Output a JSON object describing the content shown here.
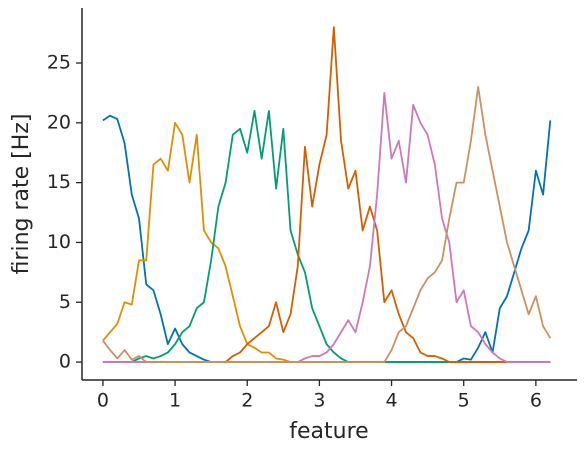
{
  "chart_data": {
    "type": "line",
    "xlabel": "feature",
    "ylabel": "firing rate [Hz]",
    "x": [
      0,
      0.1,
      0.2,
      0.3,
      0.4,
      0.5,
      0.6,
      0.7,
      0.8,
      0.9,
      1,
      1.1,
      1.2,
      1.3,
      1.4,
      1.5,
      1.6,
      1.7,
      1.8,
      1.9,
      2,
      2.1,
      2.2,
      2.3,
      2.4,
      2.5,
      2.6,
      2.7,
      2.8,
      2.9,
      3,
      3.1,
      3.2,
      3.3,
      3.4,
      3.5,
      3.6,
      3.7,
      3.8,
      3.9,
      4,
      4.1,
      4.2,
      4.3,
      4.4,
      4.5,
      4.6,
      4.7,
      4.8,
      4.9,
      5,
      5.1,
      5.2,
      5.3,
      5.4,
      5.5,
      5.6,
      5.7,
      5.8,
      5.9,
      6,
      6.1,
      6.2
    ],
    "series": [
      {
        "color": "#0173b2",
        "values": [
          20.2,
          20.6,
          20.3,
          18.3,
          14,
          12,
          6.5,
          6,
          4,
          1.5,
          2.8,
          1.5,
          0.8,
          0.5,
          0.2,
          0,
          0,
          0,
          0,
          0,
          0,
          0,
          0,
          0,
          0,
          0,
          0,
          0,
          0,
          0,
          0,
          0,
          0,
          0,
          0,
          0,
          0,
          0,
          0,
          0,
          0,
          0,
          0,
          0,
          0,
          0,
          0,
          0,
          0,
          0,
          0.3,
          0.2,
          1.2,
          2.5,
          0.8,
          4.5,
          5.5,
          7.5,
          9.5,
          11,
          16,
          14,
          20.2
        ]
      },
      {
        "color": "#de8f05",
        "values": [
          1.8,
          2.5,
          3.2,
          5,
          4.8,
          8.5,
          8.5,
          16.5,
          17,
          16,
          20,
          19,
          15,
          19,
          11,
          10,
          9.5,
          8,
          5.5,
          3,
          1.5,
          1.2,
          0.8,
          0.8,
          0.3,
          0.2,
          0,
          0,
          0,
          0,
          0,
          0,
          0,
          0,
          0,
          0,
          0,
          0,
          0,
          0,
          0,
          0,
          0,
          0,
          0,
          0,
          0,
          0,
          0,
          0,
          0,
          0,
          0,
          0,
          0,
          0,
          0,
          0,
          0,
          0,
          0,
          0,
          0
        ]
      },
      {
        "color": "#029e73",
        "values": [
          0,
          0,
          0,
          0,
          0,
          0.3,
          0.5,
          0.3,
          0.5,
          0.8,
          1.5,
          2.5,
          3,
          4.5,
          5,
          8.5,
          13,
          15,
          19,
          19.5,
          17.5,
          21,
          17,
          21,
          14.5,
          19.5,
          11,
          9,
          7.5,
          4.5,
          3,
          1.5,
          0.8,
          0.3,
          0,
          0,
          0,
          0,
          0,
          0,
          0,
          0,
          0,
          0,
          0,
          0,
          0,
          0,
          0,
          0,
          0,
          0,
          0,
          0,
          0,
          0,
          0,
          0,
          0,
          0,
          0,
          0,
          0
        ]
      },
      {
        "color": "#d55e00",
        "values": [
          0,
          0,
          0,
          0,
          0,
          0,
          0,
          0,
          0,
          0,
          0,
          0,
          0,
          0,
          0,
          0,
          0,
          0,
          0.5,
          0.8,
          1.5,
          2,
          2.5,
          3,
          5,
          2.5,
          4,
          8,
          18,
          13,
          16.5,
          19,
          28,
          18.5,
          14.5,
          16,
          11,
          13,
          11,
          5,
          6,
          4,
          2.5,
          2,
          0.8,
          0.5,
          0.5,
          0.3,
          0,
          0,
          0,
          0,
          0,
          0,
          0,
          0,
          0,
          0,
          0,
          0,
          0,
          0,
          0
        ]
      },
      {
        "color": "#cc78bc",
        "values": [
          0,
          0,
          0,
          0,
          0,
          0,
          0,
          0,
          0,
          0,
          0,
          0,
          0,
          0,
          0,
          0,
          0,
          0,
          0,
          0,
          0,
          0,
          0,
          0,
          0,
          0,
          0,
          0,
          0.3,
          0.5,
          0.5,
          0.8,
          1.5,
          2.5,
          3.5,
          2.5,
          5,
          8,
          14,
          22.5,
          17,
          18.5,
          15,
          21.5,
          20,
          19,
          16.5,
          12,
          10,
          5,
          6,
          3,
          2.5,
          1.5,
          0.8,
          0.3,
          0,
          0,
          0,
          0,
          0,
          0,
          0
        ]
      },
      {
        "color": "#ca9161",
        "values": [
          1.8,
          1,
          0.3,
          1,
          0.2,
          0.5,
          0,
          0,
          0,
          0,
          0,
          0,
          0,
          0,
          0,
          0,
          0,
          0,
          0,
          0,
          0,
          0,
          0,
          0,
          0,
          0,
          0,
          0,
          0,
          0,
          0,
          0,
          0,
          0,
          0,
          0,
          0,
          0,
          0,
          0,
          1,
          2.5,
          3,
          4.5,
          6,
          7,
          7.5,
          8.5,
          12,
          15,
          15,
          18.5,
          23,
          19,
          16,
          13,
          10,
          8,
          6,
          4,
          5.5,
          3,
          2
        ]
      }
    ],
    "xlim": [
      -0.29,
      6.57
    ],
    "ylim": [
      -1.5,
      29.6
    ],
    "xticks": [
      0,
      1,
      2,
      3,
      4,
      5,
      6
    ],
    "yticks": [
      0,
      5,
      10,
      15,
      20,
      25
    ]
  }
}
